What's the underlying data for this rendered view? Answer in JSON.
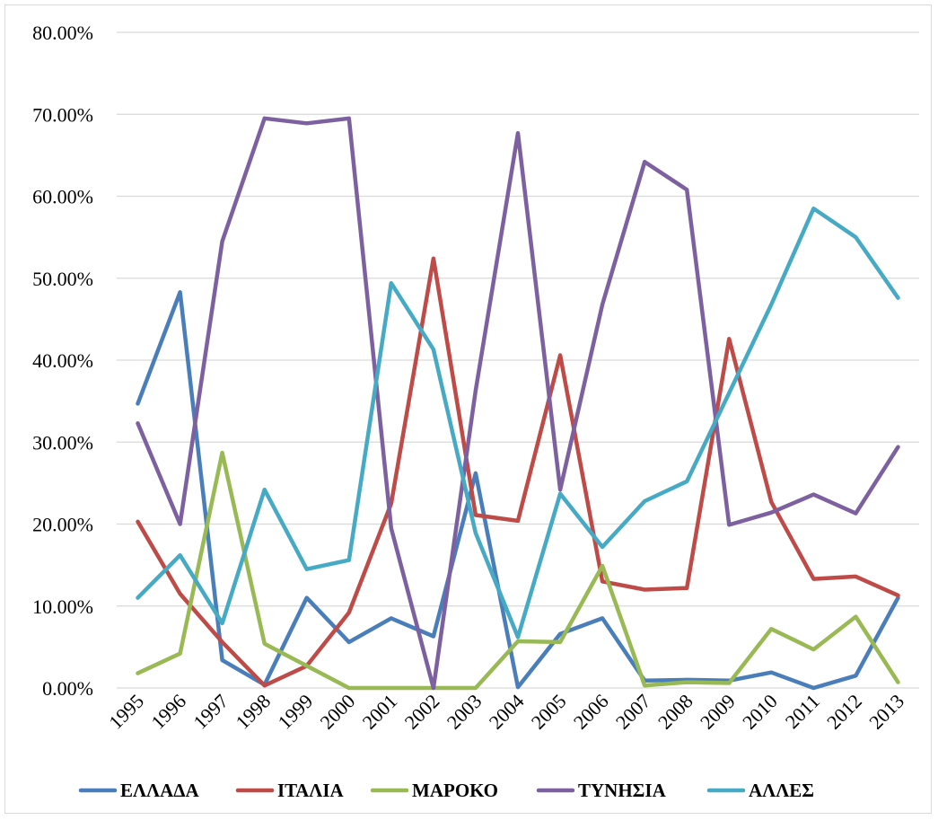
{
  "chart_data": {
    "type": "line",
    "title": "",
    "xlabel": "",
    "ylabel": "",
    "categories": [
      "1995",
      "1996",
      "1997",
      "1998",
      "1999",
      "2000",
      "2001",
      "2002",
      "2003",
      "2004",
      "2005",
      "2006",
      "2007",
      "2008",
      "2009",
      "2010",
      "2011",
      "2012",
      "2013"
    ],
    "ylim": [
      0,
      0.8
    ],
    "y_ticks": [
      {
        "value": 0.0,
        "label": "0.00%"
      },
      {
        "value": 0.1,
        "label": "10.00%"
      },
      {
        "value": 0.2,
        "label": "20.00%"
      },
      {
        "value": 0.3,
        "label": "30.00%"
      },
      {
        "value": 0.4,
        "label": "40.00%"
      },
      {
        "value": 0.5,
        "label": "50.00%"
      },
      {
        "value": 0.6,
        "label": "60.00%"
      },
      {
        "value": 0.7,
        "label": "70.00%"
      },
      {
        "value": 0.8,
        "label": "80.00%"
      }
    ],
    "grid": true,
    "legend_position": "bottom",
    "series": [
      {
        "name": "ΕΛΛΑΔΑ",
        "color": "#4a7ebb",
        "values": [
          0.347,
          0.483,
          0.034,
          0.004,
          0.11,
          0.056,
          0.085,
          0.063,
          0.262,
          0.001,
          0.066,
          0.085,
          0.009,
          0.01,
          0.009,
          0.019,
          0.0,
          0.015,
          0.11
        ]
      },
      {
        "name": "ΙΤΑΛΙΑ",
        "color": "#be4b48",
        "values": [
          0.203,
          0.115,
          0.056,
          0.003,
          0.027,
          0.092,
          0.225,
          0.524,
          0.211,
          0.204,
          0.406,
          0.13,
          0.12,
          0.122,
          0.426,
          0.227,
          0.133,
          0.136,
          0.113
        ]
      },
      {
        "name": "ΜΑΡΟΚΟ",
        "color": "#98b954",
        "values": [
          0.018,
          0.042,
          0.287,
          0.054,
          0.027,
          0.0,
          0.0,
          0.0,
          0.0,
          0.057,
          0.056,
          0.149,
          0.003,
          0.007,
          0.006,
          0.072,
          0.047,
          0.087,
          0.007
        ]
      },
      {
        "name": "ΤΥΝΗΣΙΑ",
        "color": "#7d60a0",
        "values": [
          0.323,
          0.2,
          0.545,
          0.695,
          0.689,
          0.695,
          0.195,
          0.0,
          0.363,
          0.677,
          0.242,
          0.468,
          0.642,
          0.608,
          0.199,
          0.214,
          0.236,
          0.213,
          0.294
        ]
      },
      {
        "name": "ΑΛΛΕΣ",
        "color": "#46aac5",
        "values": [
          0.11,
          0.162,
          0.079,
          0.242,
          0.145,
          0.156,
          0.494,
          0.413,
          0.189,
          0.062,
          0.237,
          0.172,
          0.228,
          0.252,
          0.36,
          0.468,
          0.585,
          0.55,
          0.476
        ]
      }
    ]
  }
}
